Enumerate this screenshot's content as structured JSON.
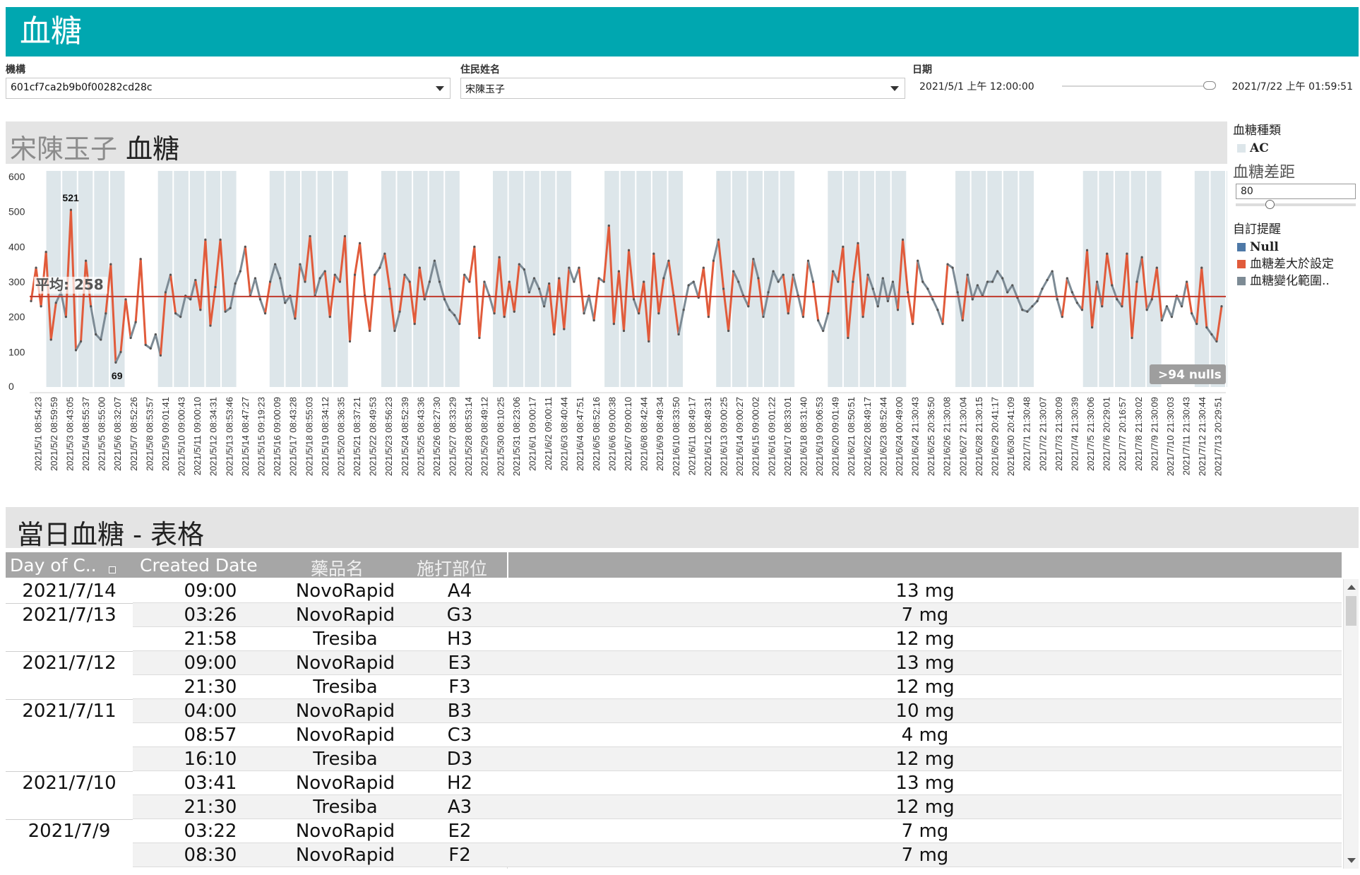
{
  "header": {
    "title": "血糖"
  },
  "filters": {
    "org": {
      "label": "機構",
      "value": "601cf7ca2b9b0f00282cd28c"
    },
    "resident": {
      "label": "住民姓名",
      "value": "宋陳玉子"
    },
    "date": {
      "label": "日期",
      "start": "2021/5/1 上午 12:00:00",
      "end": "2021/7/22 上午 01:59:51"
    }
  },
  "chart_title": {
    "name": "宋陳玉子",
    "suffix": " 血糖"
  },
  "legend": {
    "type_title": "血糖種類",
    "type_items": [
      {
        "label": "AC",
        "color": "#dde6ea"
      }
    ],
    "gap_title": "血糖差距",
    "gap_value": "80",
    "alert_title": "自訂提醒",
    "alert_items": [
      {
        "label": "Null",
        "color": "#4e79a7"
      },
      {
        "label": "血糖差大於設定",
        "color": "#e15b3b"
      },
      {
        "label": "血糖變化範圍..",
        "color": "#7d8b95"
      }
    ]
  },
  "chart_data": {
    "type": "line",
    "y_ticks": [
      "600",
      "500",
      "400",
      "300",
      "200",
      "100",
      "0"
    ],
    "ylim": [
      0,
      600
    ],
    "average_label": "平均: 258",
    "average": 258,
    "max_label": "521",
    "min_label": "69",
    "nulls_badge": ">94 nulls",
    "x_labels": [
      "2021/5/1 08:54:23",
      "2021/5/2 08:59:59",
      "2021/5/3 08:43:05",
      "2021/5/4 08:55:37",
      "2021/5/5 08:55:00",
      "2021/5/6 08:32:07",
      "2021/5/7 08:52:26",
      "2021/5/8 08:53:57",
      "2021/5/9 09:01:41",
      "2021/5/10 09:00:43",
      "2021/5/11 09:00:10",
      "2021/5/12 08:34:31",
      "2021/5/13 08:53:46",
      "2021/5/14 08:47:27",
      "2021/5/15 09:19:23",
      "2021/5/16 09:00:09",
      "2021/5/17 08:43:28",
      "2021/5/18 08:55:03",
      "2021/5/19 08:34:12",
      "2021/5/20 08:36:35",
      "2021/5/21 08:37:21",
      "2021/5/22 08:49:53",
      "2021/5/23 08:56:23",
      "2021/5/24 08:52:39",
      "2021/5/25 08:43:36",
      "2021/5/26 08:27:30",
      "2021/5/27 08:33:29",
      "2021/5/28 08:53:14",
      "2021/5/29 08:49:12",
      "2021/5/30 08:10:25",
      "2021/5/31 08:23:06",
      "2021/6/1 09:00:17",
      "2021/6/2 09:00:11",
      "2021/6/3 08:40:44",
      "2021/6/4 08:47:51",
      "2021/6/5 08:52:16",
      "2021/6/6 09:00:38",
      "2021/6/7 09:00:10",
      "2021/6/8 08:42:44",
      "2021/6/9 08:49:34",
      "2021/6/10 08:33:50",
      "2021/6/11 08:49:17",
      "2021/6/12 08:49:31",
      "2021/6/13 09:00:25",
      "2021/6/14 09:00:27",
      "2021/6/15 09:00:02",
      "2021/6/16 09:01:22",
      "2021/6/17 08:33:01",
      "2021/6/18 08:31:40",
      "2021/6/19 09:06:53",
      "2021/6/20 09:01:49",
      "2021/6/21 08:50:51",
      "2021/6/22 08:49:17",
      "2021/6/23 08:52:44",
      "2021/6/24 00:49:00",
      "2021/6/24 21:30:43",
      "2021/6/25 20:36:50",
      "2021/6/26 21:30:08",
      "2021/6/27 21:30:04",
      "2021/6/28 21:30:15",
      "2021/6/29 20:41:17",
      "2021/6/30 20:41:09",
      "2021/7/1 21:30:48",
      "2021/7/2 21:30:07",
      "2021/7/3 21:30:09",
      "2021/7/4 21:30:39",
      "2021/7/5 21:30:06",
      "2021/7/6 20:29:01",
      "2021/7/7 20:16:57",
      "2021/7/8 21:30:02",
      "2021/7/9 21:30:09",
      "2021/7/10 21:30:03",
      "2021/7/11 21:30:43",
      "2021/7/12 21:30:44",
      "2021/7/13 20:29:51"
    ],
    "y": [
      245,
      340,
      230,
      385,
      135,
      240,
      270,
      200,
      505,
      105,
      130,
      360,
      230,
      150,
      135,
      210,
      350,
      70,
      100,
      250,
      140,
      185,
      365,
      120,
      110,
      150,
      90,
      270,
      320,
      210,
      200,
      260,
      250,
      305,
      220,
      420,
      175,
      285,
      420,
      215,
      225,
      295,
      330,
      400,
      260,
      310,
      250,
      210,
      300,
      350,
      310,
      240,
      260,
      195,
      350,
      300,
      430,
      260,
      310,
      330,
      200,
      320,
      300,
      430,
      130,
      320,
      410,
      260,
      160,
      320,
      340,
      380,
      280,
      160,
      215,
      320,
      300,
      180,
      340,
      250,
      300,
      360,
      300,
      250,
      220,
      205,
      180,
      320,
      300,
      400,
      140,
      300,
      260,
      210,
      370,
      200,
      300,
      215,
      350,
      335,
      270,
      310,
      280,
      230,
      295,
      150,
      310,
      165,
      340,
      300,
      340,
      210,
      260,
      190,
      310,
      300,
      460,
      180,
      330,
      160,
      390,
      250,
      210,
      300,
      130,
      380,
      210,
      310,
      360,
      260,
      150,
      220,
      290,
      300,
      255,
      340,
      200,
      360,
      420,
      280,
      160,
      330,
      300,
      260,
      230,
      365,
      310,
      200,
      270,
      330,
      300,
      320,
      210,
      320,
      260,
      200,
      360,
      300,
      190,
      160,
      210,
      330,
      300,
      400,
      140,
      300,
      410,
      200,
      320,
      280,
      230,
      310,
      245,
      300,
      220,
      420,
      270,
      180,
      360,
      300,
      280,
      250,
      220,
      180,
      350,
      340,
      270,
      190,
      320,
      250,
      290,
      260,
      300,
      300,
      330,
      310,
      270,
      290,
      255,
      220,
      215,
      230,
      245,
      280,
      305,
      330,
      250,
      200,
      310,
      270,
      240,
      220,
      390,
      170,
      300,
      230,
      380,
      290,
      250,
      230,
      380,
      140,
      300,
      370,
      220,
      250,
      340,
      190,
      230,
      200,
      260,
      230,
      300,
      210,
      180,
      340,
      170,
      150,
      130,
      230
    ],
    "series_color_default": "#e15b3b",
    "series_color_secondary": "#7d8b95",
    "band_color": "#dde6ea",
    "avg_line_color": "#c0392b"
  },
  "table": {
    "title": "當日血糖 - 表格",
    "columns": [
      "Day of C..",
      "Created Date",
      "藥品名",
      "施打部位"
    ],
    "rows": [
      {
        "date": "2021/7/14",
        "time": "09:00",
        "drug": "NovoRapid",
        "site": "A4",
        "dose": "13 mg"
      },
      {
        "date": "2021/7/13",
        "time": "03:26",
        "drug": "NovoRapid",
        "site": "G3",
        "dose": "7 mg"
      },
      {
        "date": "",
        "time": "21:58",
        "drug": "Tresiba",
        "site": "H3",
        "dose": "12 mg"
      },
      {
        "date": "2021/7/12",
        "time": "09:00",
        "drug": "NovoRapid",
        "site": "E3",
        "dose": "13 mg"
      },
      {
        "date": "",
        "time": "21:30",
        "drug": "Tresiba",
        "site": "F3",
        "dose": "12 mg"
      },
      {
        "date": "2021/7/11",
        "time": "04:00",
        "drug": "NovoRapid",
        "site": "B3",
        "dose": "10 mg"
      },
      {
        "date": "",
        "time": "08:57",
        "drug": "NovoRapid",
        "site": "C3",
        "dose": "4 mg"
      },
      {
        "date": "",
        "time": "16:10",
        "drug": "Tresiba",
        "site": "D3",
        "dose": "12 mg"
      },
      {
        "date": "2021/7/10",
        "time": "03:41",
        "drug": "NovoRapid",
        "site": "H2",
        "dose": "13 mg"
      },
      {
        "date": "",
        "time": "21:30",
        "drug": "Tresiba",
        "site": "A3",
        "dose": "12 mg"
      },
      {
        "date": "2021/7/9",
        "time": "03:22",
        "drug": "NovoRapid",
        "site": "E2",
        "dose": "7 mg"
      },
      {
        "date": "",
        "time": "08:30",
        "drug": "NovoRapid",
        "site": "F2",
        "dose": "7 mg"
      }
    ]
  }
}
